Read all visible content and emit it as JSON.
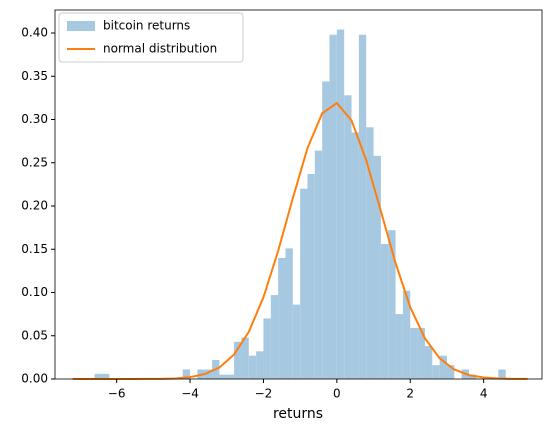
{
  "chart_data": {
    "type": "histogram",
    "xlabel": "returns",
    "xlim": [
      -7.68,
      5.59
    ],
    "ylim": [
      0,
      0.4266
    ],
    "xticks": [
      {
        "value": -6,
        "label": "−6"
      },
      {
        "value": -4,
        "label": "−4"
      },
      {
        "value": -2,
        "label": "−2"
      },
      0,
      2,
      4
    ],
    "yticks": [
      {
        "value": 0,
        "label": "0.00"
      },
      {
        "value": 0.05,
        "label": "0.05"
      },
      {
        "value": 0.1,
        "label": "0.10"
      },
      {
        "value": 0.15,
        "label": "0.15"
      },
      {
        "value": 0.2,
        "label": "0.20"
      },
      {
        "value": 0.25,
        "label": "0.25"
      },
      {
        "value": 0.3,
        "label": "0.30"
      },
      {
        "value": 0.35,
        "label": "0.35"
      },
      {
        "value": 0.4,
        "label": "0.40"
      }
    ],
    "legend": "upper left",
    "series": [
      {
        "name": "bitcoin returns",
        "type": "histogram",
        "color": "#a6c8e0",
        "bins": [
          -6.6,
          -6.4,
          -6.2,
          -6.0,
          -5.8,
          -5.6,
          -5.4,
          -5.2,
          -5.0,
          -4.8,
          -4.6,
          -4.4,
          -4.2,
          -4.0,
          -3.8,
          -3.6,
          -3.4,
          -3.2,
          -3.0,
          -2.8,
          -2.6,
          -2.4,
          -2.2,
          -2.0,
          -1.8,
          -1.6,
          -1.4,
          -1.2,
          -1.0,
          -0.8,
          -0.6,
          -0.4,
          -0.2,
          0.0,
          0.2,
          0.4,
          0.6,
          0.8,
          1.0,
          1.2,
          1.4,
          1.6,
          1.8,
          2.0,
          2.2,
          2.4,
          2.6,
          2.8,
          3.0,
          3.2,
          3.4,
          3.6,
          3.8,
          4.0,
          4.2,
          4.4,
          4.6
        ],
        "values": [
          0.006,
          0.006,
          0,
          0,
          0,
          0,
          0,
          0,
          0,
          0,
          0,
          0,
          0.011,
          0,
          0.011,
          0.011,
          0.022,
          0.005,
          0.005,
          0.043,
          0.048,
          0.027,
          0.032,
          0.07,
          0.097,
          0.14,
          0.151,
          0.086,
          0.22,
          0.237,
          0.264,
          0.344,
          0.398,
          0.404,
          0.328,
          0.285,
          0.398,
          0.291,
          0.258,
          0.156,
          0.172,
          0.075,
          0.102,
          0.059,
          0.059,
          0.038,
          0.016,
          0.027,
          0.016,
          0,
          0.011,
          0.005,
          0,
          0,
          0,
          0.011
        ]
      },
      {
        "name": "normal distribution",
        "type": "line",
        "color": "#ff7f0e",
        "x": [
          -7.2,
          -6.8,
          -6.4,
          -6.0,
          -5.6,
          -5.2,
          -4.8,
          -4.4,
          -4.0,
          -3.6,
          -3.2,
          -2.8,
          -2.4,
          -2.0,
          -1.6,
          -1.2,
          -0.8,
          -0.4,
          0.0,
          0.4,
          0.8,
          1.2,
          1.6,
          2.0,
          2.4,
          2.8,
          3.2,
          3.6,
          4.0,
          4.4,
          4.8,
          5.2
        ],
        "values": [
          0,
          0,
          0,
          0,
          0,
          0.0001,
          0.0002,
          0.0006,
          0.0022,
          0.0057,
          0.0133,
          0.0284,
          0.0545,
          0.0945,
          0.148,
          0.209,
          0.267,
          0.307,
          0.319,
          0.299,
          0.253,
          0.194,
          0.134,
          0.083,
          0.047,
          0.024,
          0.011,
          0.0045,
          0.0017,
          0.0006,
          0.0002,
          0.0001
        ]
      }
    ]
  }
}
